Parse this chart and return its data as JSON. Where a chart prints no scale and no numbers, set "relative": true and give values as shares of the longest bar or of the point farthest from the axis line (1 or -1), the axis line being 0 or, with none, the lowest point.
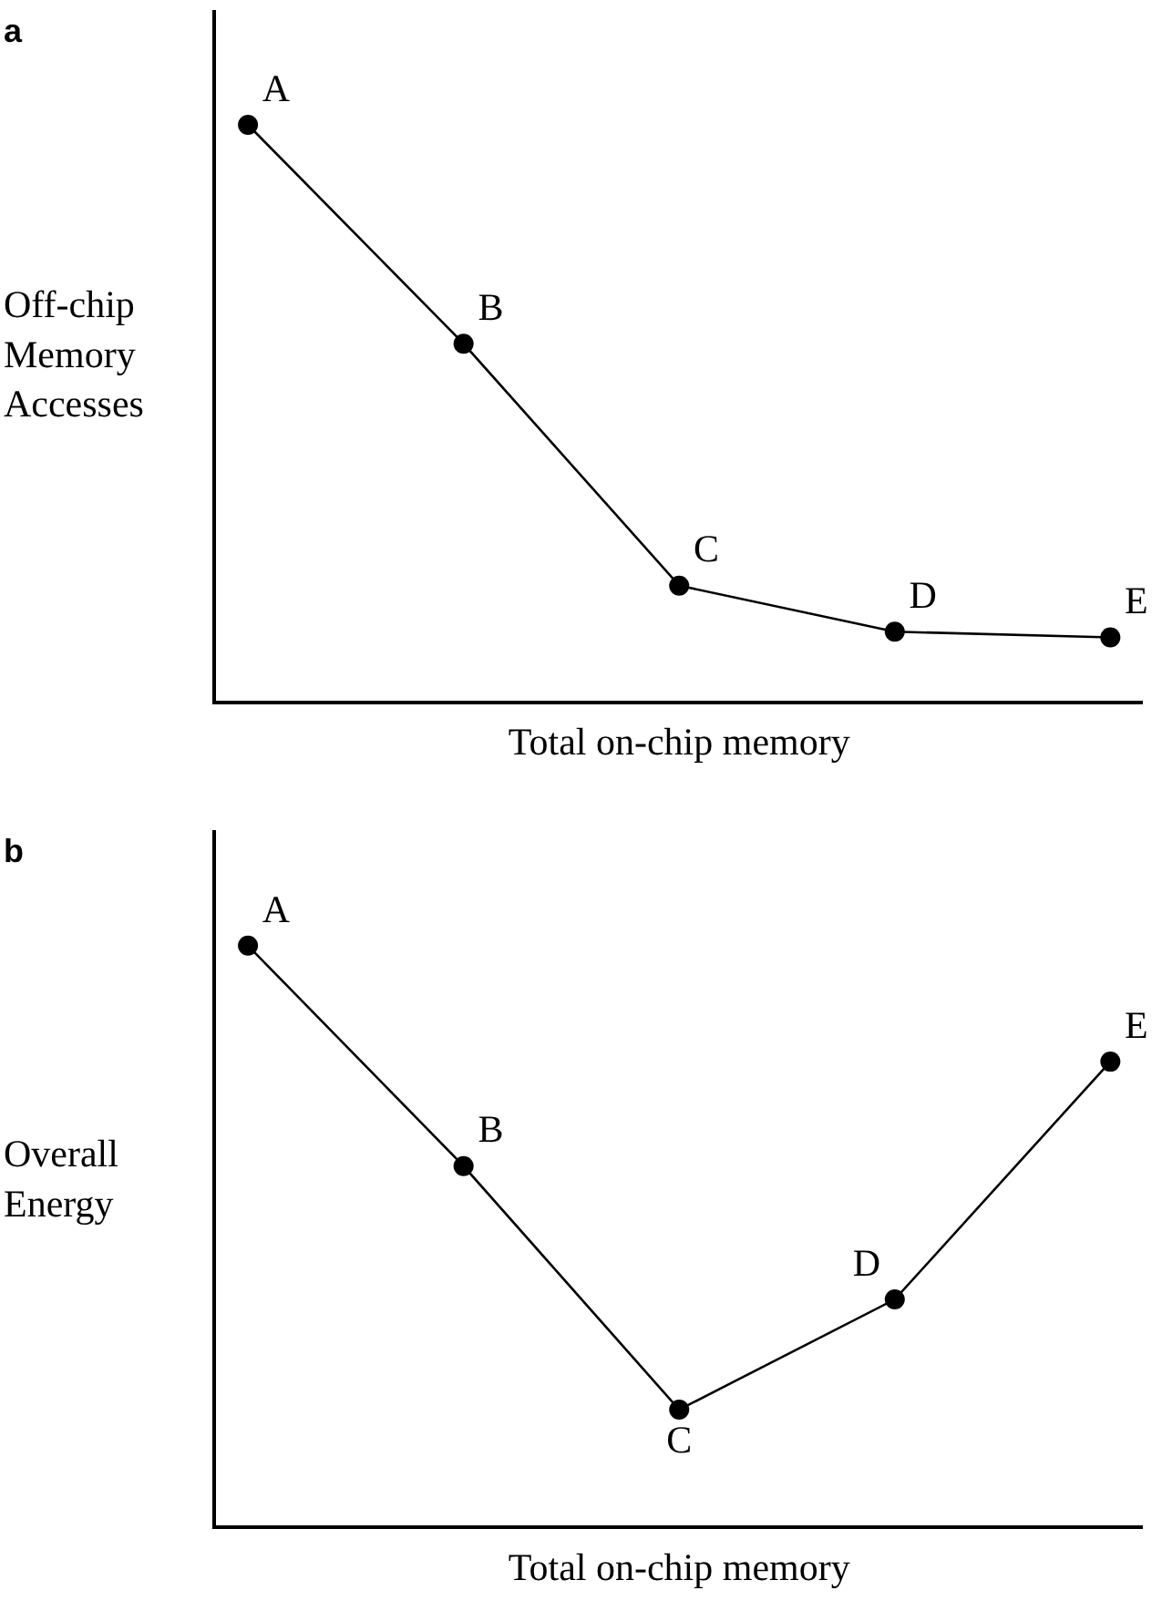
{
  "chart_data": [
    {
      "type": "line",
      "title": "a",
      "xlabel": "Total on-chip memory",
      "ylabel": "Off-chip Memory Accesses",
      "relative": true,
      "tick_labels": false,
      "marker": "circle",
      "line_style": "solid",
      "legend": false,
      "categories": [
        null,
        null,
        null,
        null,
        null
      ],
      "series": [
        {
          "color": "#000000",
          "values": [
            1,
            0.62,
            0.2,
            0.12,
            0.11
          ]
        }
      ],
      "annotations": [
        "A",
        "B",
        "C",
        "D",
        "E"
      ]
    },
    {
      "type": "line",
      "title": "b",
      "xlabel": "Total on-chip memory",
      "ylabel": "Overall Energy",
      "relative": true,
      "tick_labels": false,
      "marker": "circle",
      "line_style": "solid",
      "legend": false,
      "categories": [
        null,
        null,
        null,
        null,
        null
      ],
      "series": [
        {
          "color": "#000000",
          "values": [
            1,
            0.62,
            0.2,
            0.39,
            0.8
          ]
        }
      ],
      "annotations": [
        "A",
        "B",
        "C",
        "D",
        "E"
      ]
    }
  ]
}
